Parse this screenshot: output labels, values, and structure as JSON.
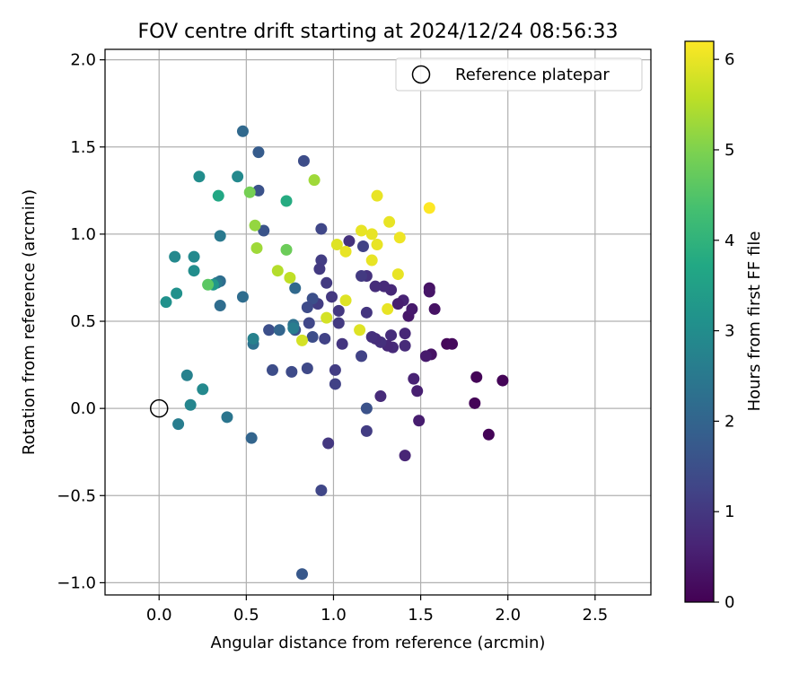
{
  "chart_data": {
    "type": "scatter",
    "title": "FOV centre drift starting at 2024/12/24 08:56:33",
    "xlabel": "Angular distance from reference (arcmin)",
    "ylabel": "Rotation from reference (arcmin)",
    "xlim": [
      -0.31,
      2.82
    ],
    "ylim": [
      -1.07,
      2.06
    ],
    "xticks": [
      0.0,
      0.5,
      1.0,
      1.5,
      2.0,
      2.5
    ],
    "xtick_labels": [
      "0.0",
      "0.5",
      "1.0",
      "1.5",
      "2.0",
      "2.5"
    ],
    "yticks": [
      -1.0,
      -0.5,
      0.0,
      0.5,
      1.0,
      1.5,
      2.0
    ],
    "ytick_labels": [
      "−1.0",
      "−0.5",
      "0.0",
      "0.5",
      "1.0",
      "1.5",
      "2.0"
    ],
    "grid": true,
    "legend": {
      "placement": "top-right",
      "entries": [
        {
          "label": "Reference platepar",
          "marker": "open-circle"
        }
      ]
    },
    "reference_point": {
      "x": 0.0,
      "y": 0.0
    },
    "colorbar": {
      "label": "Hours from first FF file",
      "colormap": "viridis",
      "range": [
        0,
        6.2
      ],
      "ticks": [
        0,
        1,
        2,
        3,
        4,
        5,
        6
      ],
      "tick_labels": [
        "0",
        "1",
        "2",
        "3",
        "4",
        "5",
        "6"
      ]
    },
    "series": [
      {
        "color_by": "hours",
        "points": [
          {
            "x": 1.82,
            "y": 0.18,
            "c": 0.05
          },
          {
            "x": 1.97,
            "y": 0.16,
            "c": 0.05
          },
          {
            "x": 1.81,
            "y": 0.03,
            "c": 0.05
          },
          {
            "x": 1.89,
            "y": -0.15,
            "c": 0.05
          },
          {
            "x": 1.65,
            "y": 0.37,
            "c": 0.1
          },
          {
            "x": 1.68,
            "y": 0.37,
            "c": 0.15
          },
          {
            "x": 1.58,
            "y": 0.57,
            "c": 0.3
          },
          {
            "x": 1.56,
            "y": 0.31,
            "c": 0.3
          },
          {
            "x": 1.55,
            "y": 0.69,
            "c": 0.3
          },
          {
            "x": 1.55,
            "y": 0.67,
            "c": 0.35
          },
          {
            "x": 1.53,
            "y": 0.3,
            "c": 0.45
          },
          {
            "x": 1.49,
            "y": -0.07,
            "c": 0.5
          },
          {
            "x": 1.48,
            "y": 0.1,
            "c": 0.55
          },
          {
            "x": 1.46,
            "y": 0.17,
            "c": 0.6
          },
          {
            "x": 1.43,
            "y": 0.53,
            "c": 0.4
          },
          {
            "x": 1.45,
            "y": 0.57,
            "c": 0.45
          },
          {
            "x": 1.4,
            "y": 0.62,
            "c": 0.6
          },
          {
            "x": 1.41,
            "y": -0.27,
            "c": 0.65
          },
          {
            "x": 1.41,
            "y": 0.43,
            "c": 0.7
          },
          {
            "x": 1.41,
            "y": 0.36,
            "c": 0.75
          },
          {
            "x": 1.37,
            "y": 0.6,
            "c": 0.5
          },
          {
            "x": 1.34,
            "y": 0.35,
            "c": 0.75
          },
          {
            "x": 1.33,
            "y": 0.42,
            "c": 0.8
          },
          {
            "x": 1.31,
            "y": 0.36,
            "c": 0.7
          },
          {
            "x": 1.33,
            "y": 0.68,
            "c": 0.7
          },
          {
            "x": 1.29,
            "y": 0.7,
            "c": 0.75
          },
          {
            "x": 1.27,
            "y": 0.38,
            "c": 0.85
          },
          {
            "x": 1.27,
            "y": 0.07,
            "c": 0.75
          },
          {
            "x": 1.24,
            "y": 0.7,
            "c": 0.8
          },
          {
            "x": 1.24,
            "y": 0.4,
            "c": 0.8
          },
          {
            "x": 1.22,
            "y": 0.41,
            "c": 0.85
          },
          {
            "x": 1.19,
            "y": 0.76,
            "c": 0.9
          },
          {
            "x": 1.16,
            "y": 0.76,
            "c": 1.05
          },
          {
            "x": 1.19,
            "y": -0.13,
            "c": 1.1
          },
          {
            "x": 1.19,
            "y": 0.55,
            "c": 0.95
          },
          {
            "x": 1.16,
            "y": 0.3,
            "c": 1.2
          },
          {
            "x": 1.17,
            "y": 0.93,
            "c": 1.2
          },
          {
            "x": 1.19,
            "y": 0.0,
            "c": 1.55
          },
          {
            "x": 1.09,
            "y": 0.96,
            "c": 0.9
          },
          {
            "x": 1.05,
            "y": 0.37,
            "c": 0.95
          },
          {
            "x": 1.03,
            "y": 0.49,
            "c": 1.05
          },
          {
            "x": 1.03,
            "y": 0.56,
            "c": 1.0
          },
          {
            "x": 0.99,
            "y": 0.64,
            "c": 1.0
          },
          {
            "x": 1.01,
            "y": 0.22,
            "c": 1.1
          },
          {
            "x": 1.01,
            "y": 0.14,
            "c": 1.2
          },
          {
            "x": 0.97,
            "y": -0.2,
            "c": 1.0
          },
          {
            "x": 0.96,
            "y": 0.72,
            "c": 1.05
          },
          {
            "x": 0.95,
            "y": 0.4,
            "c": 1.2
          },
          {
            "x": 0.93,
            "y": 0.85,
            "c": 1.1
          },
          {
            "x": 0.92,
            "y": 0.8,
            "c": 1.05
          },
          {
            "x": 0.91,
            "y": 0.6,
            "c": 1.1
          },
          {
            "x": 0.93,
            "y": -0.47,
            "c": 1.3
          },
          {
            "x": 0.93,
            "y": 1.03,
            "c": 1.3
          },
          {
            "x": 0.88,
            "y": 0.63,
            "c": 1.5
          },
          {
            "x": 0.88,
            "y": 0.41,
            "c": 1.45
          },
          {
            "x": 0.86,
            "y": 0.49,
            "c": 1.3
          },
          {
            "x": 0.85,
            "y": 0.58,
            "c": 1.4
          },
          {
            "x": 0.85,
            "y": 0.23,
            "c": 1.35
          },
          {
            "x": 0.82,
            "y": -0.95,
            "c": 1.7
          },
          {
            "x": 0.83,
            "y": 1.42,
            "c": 1.45
          },
          {
            "x": 0.78,
            "y": 0.45,
            "c": 1.6
          },
          {
            "x": 0.76,
            "y": 0.21,
            "c": 1.4
          },
          {
            "x": 0.65,
            "y": 0.22,
            "c": 1.45
          },
          {
            "x": 0.63,
            "y": 0.45,
            "c": 1.5
          },
          {
            "x": 0.6,
            "y": 1.02,
            "c": 1.6
          },
          {
            "x": 0.57,
            "y": 1.25,
            "c": 1.55
          },
          {
            "x": 0.57,
            "y": 1.47,
            "c": 1.8
          },
          {
            "x": 0.48,
            "y": 1.59,
            "c": 2.1
          },
          {
            "x": 0.53,
            "y": -0.17,
            "c": 2.0
          },
          {
            "x": 0.69,
            "y": 0.45,
            "c": 2.0
          },
          {
            "x": 0.78,
            "y": 0.69,
            "c": 2.1
          },
          {
            "x": 0.77,
            "y": 0.48,
            "c": 2.3
          },
          {
            "x": 0.77,
            "y": 0.46,
            "c": 2.6
          },
          {
            "x": 0.48,
            "y": 0.64,
            "c": 2.2
          },
          {
            "x": 0.54,
            "y": 0.37,
            "c": 2.3
          },
          {
            "x": 0.54,
            "y": 0.4,
            "c": 2.7
          },
          {
            "x": 0.39,
            "y": -0.05,
            "c": 2.4
          },
          {
            "x": 0.35,
            "y": 0.59,
            "c": 2.2
          },
          {
            "x": 0.35,
            "y": 0.73,
            "c": 2.2
          },
          {
            "x": 0.33,
            "y": 0.72,
            "c": 2.5
          },
          {
            "x": 0.35,
            "y": 0.99,
            "c": 2.5
          },
          {
            "x": 0.11,
            "y": -0.09,
            "c": 2.6
          },
          {
            "x": 0.18,
            "y": 0.02,
            "c": 2.8
          },
          {
            "x": 0.25,
            "y": 0.11,
            "c": 2.9
          },
          {
            "x": 0.16,
            "y": 0.19,
            "c": 2.7
          },
          {
            "x": 0.45,
            "y": 1.33,
            "c": 2.9
          },
          {
            "x": 0.23,
            "y": 1.33,
            "c": 3.0
          },
          {
            "x": 0.09,
            "y": 0.87,
            "c": 2.9
          },
          {
            "x": 0.2,
            "y": 0.87,
            "c": 2.9
          },
          {
            "x": 0.2,
            "y": 0.79,
            "c": 3.0
          },
          {
            "x": 0.1,
            "y": 0.66,
            "c": 3.1
          },
          {
            "x": 0.04,
            "y": 0.61,
            "c": 3.1
          },
          {
            "x": 0.31,
            "y": 0.71,
            "c": 3.3
          },
          {
            "x": 0.34,
            "y": 1.22,
            "c": 3.7
          },
          {
            "x": 0.73,
            "y": 1.19,
            "c": 3.8
          },
          {
            "x": 0.28,
            "y": 0.71,
            "c": 4.6
          },
          {
            "x": 0.52,
            "y": 1.24,
            "c": 4.9
          },
          {
            "x": 0.73,
            "y": 0.91,
            "c": 4.8
          },
          {
            "x": 0.55,
            "y": 1.05,
            "c": 5.2
          },
          {
            "x": 0.56,
            "y": 0.92,
            "c": 5.3
          },
          {
            "x": 0.89,
            "y": 1.31,
            "c": 5.3
          },
          {
            "x": 0.68,
            "y": 0.79,
            "c": 5.5
          },
          {
            "x": 0.75,
            "y": 0.75,
            "c": 5.6
          },
          {
            "x": 0.82,
            "y": 0.39,
            "c": 5.8
          },
          {
            "x": 0.96,
            "y": 0.52,
            "c": 5.8
          },
          {
            "x": 1.02,
            "y": 0.94,
            "c": 5.9
          },
          {
            "x": 1.07,
            "y": 0.62,
            "c": 5.9
          },
          {
            "x": 1.07,
            "y": 0.9,
            "c": 6.0
          },
          {
            "x": 1.15,
            "y": 0.45,
            "c": 5.9
          },
          {
            "x": 1.16,
            "y": 1.02,
            "c": 6.0
          },
          {
            "x": 1.22,
            "y": 1.0,
            "c": 6.0
          },
          {
            "x": 1.22,
            "y": 0.85,
            "c": 6.0
          },
          {
            "x": 1.25,
            "y": 0.94,
            "c": 6.0
          },
          {
            "x": 1.25,
            "y": 1.22,
            "c": 6.0
          },
          {
            "x": 1.31,
            "y": 0.57,
            "c": 6.0
          },
          {
            "x": 1.32,
            "y": 1.07,
            "c": 6.0
          },
          {
            "x": 1.37,
            "y": 0.77,
            "c": 6.0
          },
          {
            "x": 1.38,
            "y": 0.98,
            "c": 6.05
          },
          {
            "x": 1.55,
            "y": 1.15,
            "c": 6.2
          }
        ]
      }
    ]
  }
}
